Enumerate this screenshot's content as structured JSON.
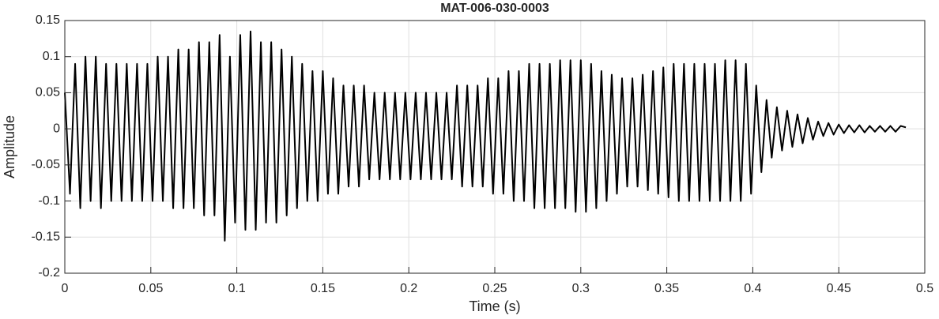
{
  "chart_data": {
    "type": "line",
    "title": "MAT-006-030-0003",
    "xlabel": "Time (s)",
    "ylabel": "Amplitude",
    "xlim": [
      0,
      0.5
    ],
    "ylim": [
      -0.2,
      0.15
    ],
    "xticks": [
      0,
      0.05,
      0.1,
      0.15,
      0.2,
      0.25,
      0.3,
      0.35,
      0.4,
      0.45,
      0.5
    ],
    "yticks": [
      -0.2,
      -0.15,
      -0.1,
      -0.05,
      0,
      0.05,
      0.1,
      0.15
    ],
    "grid": true,
    "x": [
      0,
      0.003,
      0.006,
      0.009,
      0.012,
      0.015,
      0.018,
      0.021,
      0.024,
      0.027,
      0.03,
      0.033,
      0.036,
      0.039,
      0.042,
      0.045,
      0.048,
      0.051,
      0.054,
      0.057,
      0.06,
      0.063,
      0.066,
      0.069,
      0.072,
      0.075,
      0.078,
      0.081,
      0.084,
      0.087,
      0.09,
      0.093,
      0.096,
      0.099,
      0.102,
      0.105,
      0.108,
      0.111,
      0.114,
      0.117,
      0.12,
      0.123,
      0.126,
      0.129,
      0.132,
      0.135,
      0.138,
      0.141,
      0.144,
      0.147,
      0.15,
      0.153,
      0.156,
      0.159,
      0.162,
      0.165,
      0.168,
      0.171,
      0.174,
      0.177,
      0.18,
      0.183,
      0.186,
      0.189,
      0.192,
      0.195,
      0.198,
      0.201,
      0.204,
      0.207,
      0.21,
      0.213,
      0.216,
      0.219,
      0.222,
      0.225,
      0.228,
      0.231,
      0.234,
      0.237,
      0.24,
      0.243,
      0.246,
      0.249,
      0.252,
      0.255,
      0.258,
      0.261,
      0.264,
      0.267,
      0.27,
      0.273,
      0.276,
      0.279,
      0.282,
      0.285,
      0.288,
      0.291,
      0.294,
      0.297,
      0.3,
      0.303,
      0.306,
      0.309,
      0.312,
      0.315,
      0.318,
      0.321,
      0.324,
      0.327,
      0.33,
      0.333,
      0.336,
      0.339,
      0.342,
      0.345,
      0.348,
      0.351,
      0.354,
      0.357,
      0.36,
      0.363,
      0.366,
      0.369,
      0.372,
      0.375,
      0.378,
      0.381,
      0.384,
      0.387,
      0.39,
      0.393,
      0.396,
      0.399,
      0.402,
      0.405,
      0.408,
      0.411,
      0.414,
      0.417,
      0.42,
      0.423,
      0.426,
      0.429,
      0.432,
      0.435,
      0.438,
      0.441,
      0.444,
      0.447,
      0.45,
      0.453,
      0.456,
      0.459,
      0.462,
      0.465,
      0.468,
      0.471,
      0.474,
      0.477,
      0.48,
      0.483,
      0.486,
      0.489
    ],
    "series": [
      {
        "color": "#000000",
        "values": [
          0.05,
          -0.09,
          0.09,
          -0.11,
          0.1,
          -0.1,
          0.1,
          -0.11,
          0.09,
          -0.1,
          0.09,
          -0.1,
          0.09,
          -0.1,
          0.09,
          -0.1,
          0.09,
          -0.1,
          0.1,
          -0.1,
          0.1,
          -0.11,
          0.11,
          -0.11,
          0.11,
          -0.11,
          0.12,
          -0.12,
          0.12,
          -0.12,
          0.13,
          -0.155,
          0.1,
          -0.13,
          0.13,
          -0.14,
          0.135,
          -0.14,
          0.12,
          -0.13,
          0.12,
          -0.13,
          0.11,
          -0.12,
          0.1,
          -0.11,
          0.09,
          -0.1,
          0.08,
          -0.1,
          0.08,
          -0.09,
          0.07,
          -0.09,
          0.06,
          -0.08,
          0.06,
          -0.08,
          0.06,
          -0.07,
          0.05,
          -0.07,
          0.05,
          -0.07,
          0.05,
          -0.07,
          0.05,
          -0.07,
          0.05,
          -0.07,
          0.05,
          -0.07,
          0.05,
          -0.07,
          0.05,
          -0.07,
          0.06,
          -0.08,
          0.06,
          -0.08,
          0.06,
          -0.08,
          0.07,
          -0.09,
          0.07,
          -0.09,
          0.08,
          -0.1,
          0.08,
          -0.1,
          0.09,
          -0.11,
          0.09,
          -0.11,
          0.09,
          -0.11,
          0.095,
          -0.11,
          0.095,
          -0.115,
          0.095,
          -0.115,
          0.09,
          -0.11,
          0.08,
          -0.1,
          0.075,
          -0.09,
          0.07,
          -0.08,
          0.07,
          -0.08,
          0.075,
          -0.085,
          0.08,
          -0.09,
          0.085,
          -0.095,
          0.09,
          -0.1,
          0.09,
          -0.1,
          0.09,
          -0.1,
          0.09,
          -0.1,
          0.09,
          -0.1,
          0.095,
          -0.1,
          0.095,
          -0.1,
          0.09,
          -0.09,
          0.06,
          -0.06,
          0.04,
          -0.04,
          0.03,
          -0.03,
          0.025,
          -0.025,
          0.02,
          -0.02,
          0.015,
          -0.015,
          0.01,
          -0.01,
          0.008,
          -0.008,
          0.006,
          -0.006,
          0.005,
          -0.005,
          0.005,
          -0.005,
          0.004,
          -0.004,
          0.004,
          -0.004,
          0.004,
          -0.004,
          0.004,
          0.002
        ]
      }
    ]
  }
}
